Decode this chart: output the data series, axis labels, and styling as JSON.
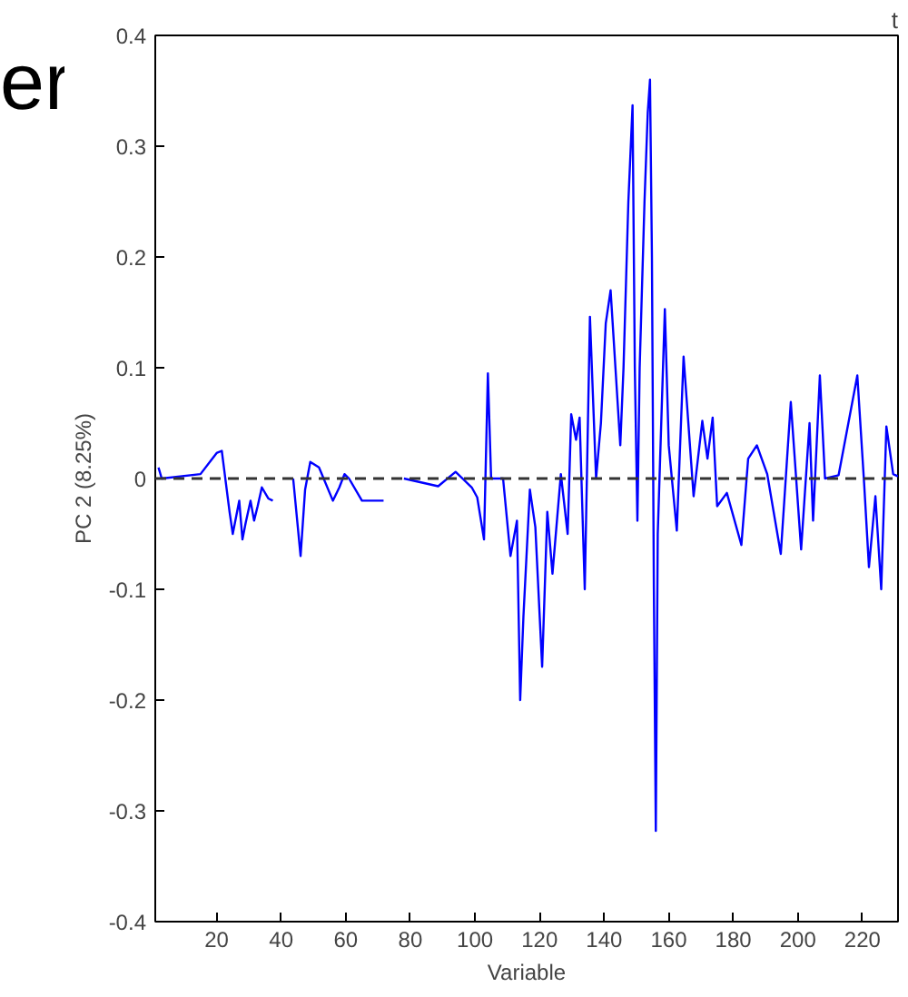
{
  "chart_data": {
    "type": "line",
    "xlabel": "Variable",
    "ylabel": "PC 2 (8.25%)",
    "annotations": [
      "er",
      "t"
    ],
    "xlim": [
      1,
      231
    ],
    "ylim": [
      -0.4,
      0.4
    ],
    "xticks": [
      20,
      40,
      60,
      80,
      100,
      120,
      140,
      160,
      180,
      200,
      220
    ],
    "yticks": [
      -0.4,
      -0.3,
      -0.2,
      -0.1,
      0,
      0.1,
      0.2,
      0.3,
      0.4
    ],
    "grid": false,
    "line_style": "solid",
    "marker": "none",
    "ref_lines": [
      {
        "axis": "y",
        "value": 0,
        "color": "#333333",
        "line_style": "dashed"
      }
    ],
    "series": [
      {
        "color": "#0000ff",
        "x": [
          2,
          3,
          15,
          20,
          21.6,
          24,
          25,
          27,
          28,
          29,
          30.5,
          31.6,
          32.7,
          34,
          36,
          37.4,
          40,
          43.7,
          46,
          47.4,
          49,
          51.7,
          56,
          58,
          59.6,
          61,
          65,
          71.7,
          74,
          78,
          88.6,
          94,
          99,
          100.7,
          102.8,
          104,
          105,
          108.7,
          111,
          113,
          114,
          115,
          117,
          118.7,
          120.8,
          122.4,
          124,
          126.6,
          128.7,
          129.8,
          131.3,
          132.4,
          134,
          135.6,
          137.5,
          139,
          140.5,
          142,
          143.5,
          145,
          146,
          147.5,
          148.8,
          149.5,
          150.3,
          151,
          152.5,
          153.5,
          154.2,
          154.8,
          155.4,
          156,
          156.6,
          158.8,
          160,
          162.5,
          164.6,
          167.7,
          170.4,
          172,
          173.6,
          175,
          178,
          182.5,
          184.6,
          187.3,
          190.5,
          194.7,
          197.8,
          201,
          203.6,
          204.7,
          206.8,
          208.4,
          212.6,
          218.4,
          220.5,
          222,
          224,
          225.8,
          227.4,
          229.5,
          231
        ],
        "values": [
          0.01,
          0,
          0.004,
          0.023,
          0.025,
          -0.03,
          -0.05,
          -0.02,
          -0.055,
          -0.04,
          -0.02,
          -0.038,
          -0.025,
          -0.008,
          -0.018,
          -0.02,
          null,
          0,
          -0.07,
          -0.01,
          0.015,
          0.01,
          -0.02,
          -0.008,
          0.004,
          0,
          -0.02,
          -0.02,
          null,
          0,
          -0.007,
          0.006,
          -0.008,
          -0.017,
          -0.055,
          0.095,
          0,
          0,
          -0.07,
          -0.038,
          -0.2,
          -0.125,
          -0.01,
          -0.044,
          -0.17,
          -0.03,
          -0.086,
          0.004,
          -0.05,
          0.058,
          0.035,
          0.055,
          -0.1,
          0.146,
          0,
          0.05,
          0.14,
          0.17,
          0.1,
          0.03,
          0.1,
          0.25,
          0.337,
          0.1,
          -0.038,
          0.1,
          0.25,
          0.33,
          0.36,
          0.2,
          -0.1,
          -0.318,
          -0.05,
          0.153,
          0.03,
          -0.047,
          0.11,
          -0.016,
          0.052,
          0.018,
          0.055,
          -0.025,
          -0.013,
          -0.06,
          0.018,
          0.03,
          0.004,
          -0.068,
          0.069,
          -0.064,
          0.05,
          -0.038,
          0.093,
          0,
          0.003,
          0.093,
          -0.004,
          -0.08,
          -0.016,
          -0.1,
          0.047,
          0.004,
          0.002
        ]
      }
    ]
  }
}
